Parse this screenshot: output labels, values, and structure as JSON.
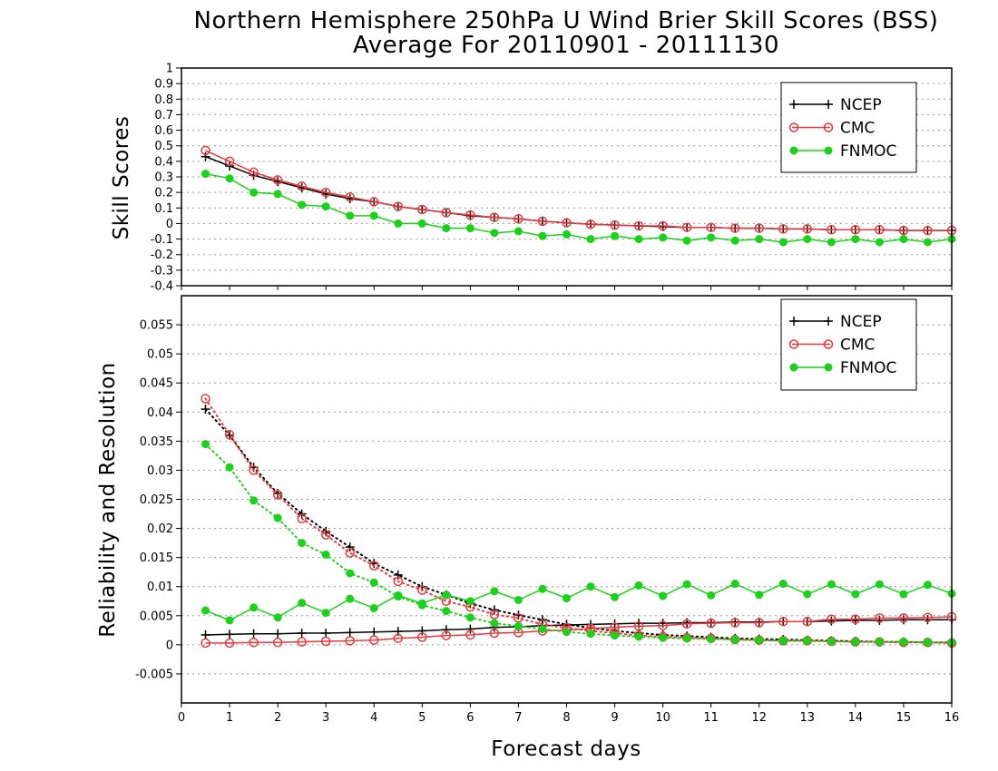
{
  "chart_data": [
    {
      "type": "line",
      "title": "Northern Hemisphere 250hPa U Wind Brier Skill Scores (BSS)",
      "subtitle": "Average For 20110901 - 20111130",
      "xlabel": "",
      "ylabel": "Skill Scores",
      "xlim": [
        0,
        16
      ],
      "ylim": [
        -0.4,
        1
      ],
      "x_ticks": [
        "0",
        "1",
        "2",
        "3",
        "4",
        "5",
        "6",
        "7",
        "8",
        "9",
        "10",
        "11",
        "12",
        "13",
        "14",
        "15",
        "16"
      ],
      "y_ticks": [
        "-0.4",
        "-0.3",
        "-0.2",
        "-0.1",
        "0",
        "0.1",
        "0.2",
        "0.3",
        "0.4",
        "0.5",
        "0.6",
        "0.7",
        "0.8",
        "0.9",
        "1"
      ],
      "grid": true,
      "legend_position": "top-right",
      "x": [
        0.5,
        1,
        1.5,
        2,
        2.5,
        3,
        3.5,
        4,
        4.5,
        5,
        5.5,
        6,
        6.5,
        7,
        7.5,
        8,
        8.5,
        9,
        9.5,
        10,
        10.5,
        11,
        11.5,
        12,
        12.5,
        13,
        13.5,
        14,
        14.5,
        15,
        15.5,
        16
      ],
      "series": [
        {
          "name": "NCEP",
          "color": "#000000",
          "marker": "plus",
          "values": [
            0.43,
            0.37,
            0.31,
            0.27,
            0.23,
            0.19,
            0.16,
            0.14,
            0.11,
            0.09,
            0.07,
            0.05,
            0.04,
            0.03,
            0.015,
            0.005,
            -0.005,
            -0.01,
            -0.015,
            -0.02,
            -0.025,
            -0.025,
            -0.03,
            -0.03,
            -0.035,
            -0.035,
            -0.04,
            -0.04,
            -0.04,
            -0.045,
            -0.045,
            -0.045
          ]
        },
        {
          "name": "CMC",
          "color": "#e8393c",
          "marker": "open-circle",
          "values": [
            0.47,
            0.4,
            0.33,
            0.28,
            0.24,
            0.2,
            0.17,
            0.14,
            0.11,
            0.09,
            0.07,
            0.055,
            0.04,
            0.03,
            0.015,
            0.005,
            -0.005,
            -0.01,
            -0.015,
            -0.015,
            -0.025,
            -0.025,
            -0.03,
            -0.03,
            -0.035,
            -0.035,
            -0.04,
            -0.04,
            -0.04,
            -0.045,
            -0.045,
            -0.045
          ]
        },
        {
          "name": "FNMOC",
          "color": "#19d219",
          "marker": "filled-circle",
          "values": [
            0.32,
            0.29,
            0.2,
            0.19,
            0.12,
            0.11,
            0.05,
            0.05,
            0.0,
            0.0,
            -0.03,
            -0.03,
            -0.06,
            -0.05,
            -0.08,
            -0.07,
            -0.1,
            -0.08,
            -0.1,
            -0.09,
            -0.11,
            -0.09,
            -0.11,
            -0.1,
            -0.12,
            -0.1,
            -0.12,
            -0.1,
            -0.12,
            -0.1,
            -0.12,
            -0.1
          ]
        }
      ]
    },
    {
      "type": "line",
      "title": "",
      "xlabel": "Forecast days",
      "ylabel": "Reliability and Resolution",
      "xlim": [
        0,
        16
      ],
      "ylim": [
        -0.01,
        0.06
      ],
      "x_ticks": [
        "0",
        "1",
        "2",
        "3",
        "4",
        "5",
        "6",
        "7",
        "8",
        "9",
        "10",
        "11",
        "12",
        "13",
        "14",
        "15",
        "16"
      ],
      "y_ticks": [
        "-0.005",
        "0",
        "0.005",
        "0.01",
        "0.015",
        "0.02",
        "0.025",
        "0.03",
        "0.035",
        "0.04",
        "0.045",
        "0.05",
        "0.055"
      ],
      "grid": true,
      "legend_position": "top-right",
      "x": [
        0.5,
        1,
        1.5,
        2,
        2.5,
        3,
        3.5,
        4,
        4.5,
        5,
        5.5,
        6,
        6.5,
        7,
        7.5,
        8,
        8.5,
        9,
        9.5,
        10,
        10.5,
        11,
        11.5,
        12,
        12.5,
        13,
        13.5,
        14,
        14.5,
        15,
        15.5,
        16
      ],
      "series": [
        {
          "name": "NCEP",
          "color": "#000000",
          "marker": "plus",
          "line": "solid",
          "values": [
            0.0017,
            0.0018,
            0.0019,
            0.0019,
            0.002,
            0.002,
            0.0021,
            0.0022,
            0.0023,
            0.0024,
            0.0026,
            0.0027,
            0.003,
            0.0031,
            0.0033,
            0.0034,
            0.0035,
            0.0036,
            0.0037,
            0.0037,
            0.0038,
            0.0038,
            0.0039,
            0.0039,
            0.004,
            0.004,
            0.0041,
            0.0042,
            0.0042,
            0.0043,
            0.0043,
            0.0043
          ]
        },
        {
          "name": "NCEP",
          "color": "#000000",
          "marker": "plus",
          "line": "dotted",
          "values": [
            0.0405,
            0.036,
            0.0305,
            0.026,
            0.0225,
            0.0195,
            0.0168,
            0.014,
            0.012,
            0.01,
            0.0086,
            0.0071,
            0.006,
            0.0051,
            0.0043,
            0.0035,
            0.0029,
            0.0024,
            0.002,
            0.0017,
            0.0015,
            0.0013,
            0.0011,
            0.001,
            0.0009,
            0.0008,
            0.0007,
            0.0006,
            0.0005,
            0.0005,
            0.0004,
            0.0004
          ]
        },
        {
          "name": "CMC",
          "color": "#e8393c",
          "marker": "open-circle",
          "line": "solid",
          "values": [
            0.0003,
            0.0003,
            0.0004,
            0.0004,
            0.0005,
            0.0006,
            0.0007,
            0.0008,
            0.0011,
            0.0013,
            0.0016,
            0.0017,
            0.002,
            0.0021,
            0.0024,
            0.0025,
            0.0028,
            0.003,
            0.0032,
            0.0033,
            0.0036,
            0.0037,
            0.0038,
            0.0038,
            0.004,
            0.004,
            0.0044,
            0.0044,
            0.0046,
            0.0046,
            0.0047,
            0.0048
          ]
        },
        {
          "name": "CMC",
          "color": "#e8393c",
          "marker": "open-circle",
          "line": "dotted",
          "values": [
            0.0423,
            0.0361,
            0.03,
            0.0258,
            0.0217,
            0.0189,
            0.0158,
            0.0136,
            0.0109,
            0.0094,
            0.0075,
            0.0065,
            0.0052,
            0.0046,
            0.0035,
            0.0029,
            0.0024,
            0.002,
            0.0016,
            0.0014,
            0.0012,
            0.0011,
            0.0009,
            0.0008,
            0.0007,
            0.0007,
            0.0006,
            0.0005,
            0.0005,
            0.0004,
            0.0004,
            0.0003
          ]
        },
        {
          "name": "FNMOC",
          "color": "#19d219",
          "marker": "filled-circle",
          "line": "solid",
          "values": [
            0.0059,
            0.0042,
            0.0064,
            0.0047,
            0.0072,
            0.0055,
            0.0079,
            0.0063,
            0.0085,
            0.0071,
            0.0086,
            0.0075,
            0.0092,
            0.0077,
            0.0096,
            0.008,
            0.01,
            0.0082,
            0.0102,
            0.0084,
            0.0104,
            0.0085,
            0.0105,
            0.0086,
            0.0105,
            0.0087,
            0.0104,
            0.0087,
            0.0104,
            0.0087,
            0.0103,
            0.0088
          ]
        },
        {
          "name": "FNMOC",
          "color": "#19d219",
          "marker": "filled-circle",
          "line": "dotted",
          "values": [
            0.0345,
            0.0305,
            0.0248,
            0.0218,
            0.0175,
            0.0155,
            0.0123,
            0.0107,
            0.0083,
            0.0068,
            0.0058,
            0.0047,
            0.0037,
            0.0032,
            0.0027,
            0.0022,
            0.0019,
            0.0016,
            0.0014,
            0.0012,
            0.0011,
            0.001,
            0.0009,
            0.0008,
            0.0007,
            0.0007,
            0.0006,
            0.0005,
            0.0005,
            0.0005,
            0.0004,
            0.0004
          ]
        }
      ]
    }
  ]
}
